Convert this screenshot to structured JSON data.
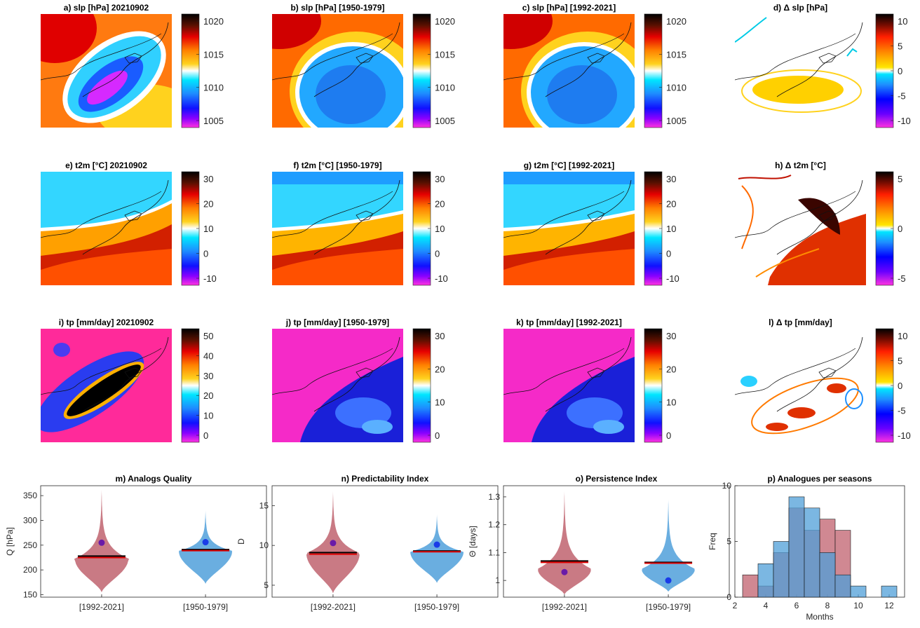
{
  "map_panels": [
    {
      "title": "a) slp [hPa] 20210902",
      "cbar_ticks": [
        "1020",
        "1015",
        "1010",
        "1005"
      ],
      "cmap": "hot",
      "pattern": "low"
    },
    {
      "title": "b) slp [hPa] [1950-1979]",
      "cbar_ticks": [
        "1020",
        "1015",
        "1010",
        "1005"
      ],
      "cmap": "hot",
      "pattern": "lowbroad"
    },
    {
      "title": "c) slp [hPa] [1992-2021]",
      "cbar_ticks": [
        "1020",
        "1015",
        "1010",
        "1005"
      ],
      "cmap": "hot",
      "pattern": "lowbroad"
    },
    {
      "title": "d) Δ slp [hPa]",
      "cbar_ticks": [
        "10",
        "5",
        "0",
        "-5",
        "-10"
      ],
      "cmap": "div",
      "pattern": "diffslp"
    },
    {
      "title": "e) t2m [°C] 20210902",
      "cbar_ticks": [
        "30",
        "20",
        "10",
        "0",
        "-10"
      ],
      "cmap": "hot",
      "pattern": "temp"
    },
    {
      "title": "f) t2m [°C] [1950-1979]",
      "cbar_ticks": [
        "30",
        "20",
        "10",
        "0",
        "-10"
      ],
      "cmap": "hot",
      "pattern": "temp2"
    },
    {
      "title": "g) t2m [°C] [1992-2021]",
      "cbar_ticks": [
        "30",
        "20",
        "10",
        "0",
        "-10"
      ],
      "cmap": "hot",
      "pattern": "temp2"
    },
    {
      "title": "h) Δ t2m [°C]",
      "cbar_ticks": [
        "5",
        "0",
        "-5"
      ],
      "cmap": "div",
      "pattern": "difft"
    },
    {
      "title": "i) tp [mm/day] 20210902",
      "cbar_ticks": [
        "50",
        "40",
        "30",
        "20",
        "10",
        "0"
      ],
      "cmap": "hot",
      "pattern": "band"
    },
    {
      "title": "j) tp [mm/day] [1950-1979]",
      "cbar_ticks": [
        "30",
        "20",
        "10",
        "0"
      ],
      "cmap": "hot",
      "pattern": "precip"
    },
    {
      "title": "k) tp [mm/day] [1992-2021]",
      "cbar_ticks": [
        "30",
        "20",
        "10",
        "0"
      ],
      "cmap": "hot",
      "pattern": "precip"
    },
    {
      "title": "l) Δ tp [mm/day]",
      "cbar_ticks": [
        "10",
        "5",
        "0",
        "-5",
        "-10"
      ],
      "cmap": "div",
      "pattern": "difftp"
    }
  ],
  "chart_data": [
    {
      "type": "violin",
      "title": "m) Analogs Quality",
      "ylabel": "Q [hPa]",
      "ylim": [
        145,
        370
      ],
      "yticks": [
        150,
        200,
        250,
        300,
        350
      ],
      "categories": [
        "[1992-2021]",
        "[1950-1979]"
      ],
      "series": [
        {
          "color": "#c97a84",
          "min": 155,
          "max": 362,
          "mode": 222,
          "mean": 228,
          "median": 225,
          "dot": 255
        },
        {
          "color": "#6aaee0",
          "min": 172,
          "max": 320,
          "mode": 238,
          "mean": 241,
          "median": 239,
          "dot": 256
        }
      ]
    },
    {
      "type": "violin",
      "title": "n) Predictability Index",
      "ylabel": "D",
      "ylim": [
        3.5,
        17.5
      ],
      "yticks": [
        5,
        10,
        15
      ],
      "categories": [
        "[1992-2021]",
        "[1950-1979]"
      ],
      "series": [
        {
          "color": "#c97a84",
          "min": 4.0,
          "max": 16.8,
          "mode": 9.0,
          "mean": 9.1,
          "median": 8.9,
          "dot": 10.3
        },
        {
          "color": "#6aaee0",
          "min": 5.3,
          "max": 13.9,
          "mode": 9.2,
          "mean": 9.3,
          "median": 9.2,
          "dot": 10.1
        }
      ]
    },
    {
      "type": "violin",
      "title": "o) Persistence Index",
      "ylabel": "Θ [days]",
      "ylim": [
        0.94,
        1.34
      ],
      "yticks": [
        1.0,
        1.1,
        1.2,
        1.3
      ],
      "categories": [
        "[1992-2021]",
        "[1950-1979]"
      ],
      "series": [
        {
          "color": "#c97a84",
          "min": 0.95,
          "max": 1.32,
          "mode": 1.04,
          "mean": 1.07,
          "median": 1.065,
          "dot": 1.03
        },
        {
          "color": "#6aaee0",
          "min": 0.96,
          "max": 1.29,
          "mode": 1.04,
          "mean": 1.065,
          "median": 1.062,
          "dot": 1.0
        }
      ]
    },
    {
      "type": "histogram",
      "title": "p) Analogues per seasons",
      "xlabel": "Months",
      "ylabel": "Freq",
      "xlim": [
        2,
        13
      ],
      "ylim": [
        0,
        10
      ],
      "xticks": [
        2,
        4,
        6,
        8,
        10,
        12
      ],
      "yticks": [
        0,
        5,
        10
      ],
      "bins": [
        3,
        4,
        5,
        6,
        7,
        8,
        9,
        10,
        12
      ],
      "series": [
        {
          "color": "#c0606e",
          "values": [
            2,
            1,
            4,
            8,
            6,
            7,
            6,
            0,
            0
          ]
        },
        {
          "color": "#4f9fd8",
          "values": [
            0,
            3,
            5,
            9,
            8,
            4,
            2,
            1,
            1
          ]
        }
      ]
    }
  ]
}
